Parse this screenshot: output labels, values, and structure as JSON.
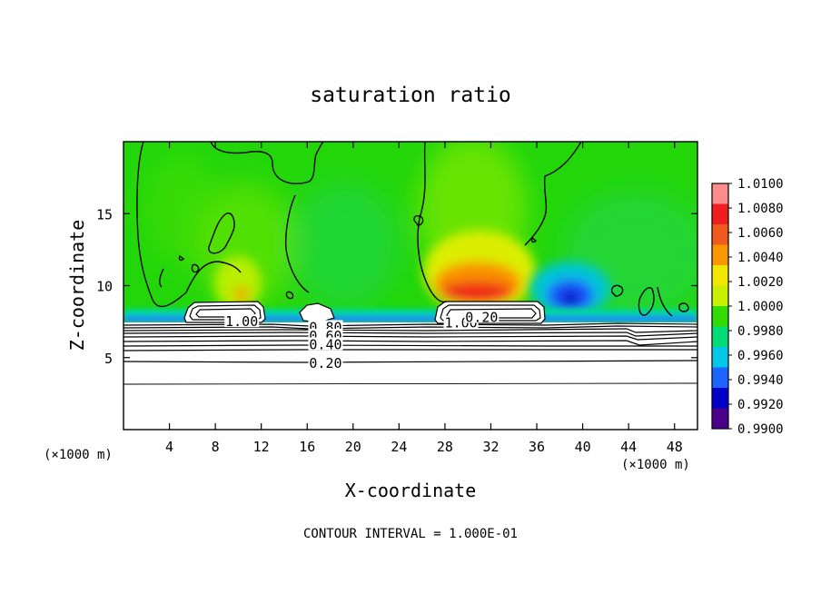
{
  "chart_data": {
    "type": "heatmap",
    "title": "saturation ratio",
    "xlabel": "X-coordinate",
    "ylabel": "Z-coordinate",
    "x_unit_left": "(×1000 m)",
    "x_unit_right": "(×1000 m)",
    "xlim": [
      0,
      50
    ],
    "ylim": [
      0,
      20
    ],
    "x_ticks": [
      4,
      8,
      12,
      16,
      20,
      24,
      28,
      32,
      36,
      40,
      44,
      48
    ],
    "y_ticks": [
      5,
      10,
      15
    ],
    "footer": "CONTOUR INTERVAL = 1.000E-01",
    "colorbar": {
      "min": 0.99,
      "max": 1.01,
      "labels": [
        "1.0100",
        "1.0080",
        "1.0060",
        "1.0040",
        "1.0020",
        "1.0000",
        "0.9980",
        "0.9960",
        "0.9940",
        "0.9920",
        "0.9900"
      ],
      "colors": [
        "#fa8c8c",
        "#f01e1e",
        "#f05a1e",
        "#fa9600",
        "#f0e600",
        "#c8f000",
        "#32dc00",
        "#00dc78",
        "#00c8e6",
        "#1e64ff",
        "#0000c8",
        "#4b008c"
      ]
    },
    "contour_labels": [
      {
        "text": "1.00",
        "x": 10.3,
        "z": 7.5
      },
      {
        "text": "0.80",
        "x": 17.6,
        "z": 7.1
      },
      {
        "text": "0.60",
        "x": 17.6,
        "z": 6.5
      },
      {
        "text": "0.40",
        "x": 17.6,
        "z": 5.9
      },
      {
        "text": "0.20",
        "x": 17.6,
        "z": 4.6
      },
      {
        "text": "1.00",
        "x": 29.4,
        "z": 7.4
      },
      {
        "text": "0.20",
        "x": 31.2,
        "z": 7.8
      }
    ],
    "field_regions": [
      {
        "name": "background",
        "value": 1.0004
      },
      {
        "name": "boundary-layer",
        "value": 0.9975,
        "z_range": [
          7.0,
          8.0
        ]
      },
      {
        "name": "supersaturated-plume-east",
        "value": 1.008,
        "x": 31,
        "z": 10.5
      },
      {
        "name": "supersaturated-plume-west",
        "value": 1.004,
        "x": 10.5,
        "z": 9.5
      },
      {
        "name": "subsaturated-core",
        "value": 0.992,
        "x": 38.5,
        "z": 9.5
      }
    ],
    "contour_levels": [
      0.2,
      0.4,
      0.6,
      0.8,
      1.0
    ]
  }
}
